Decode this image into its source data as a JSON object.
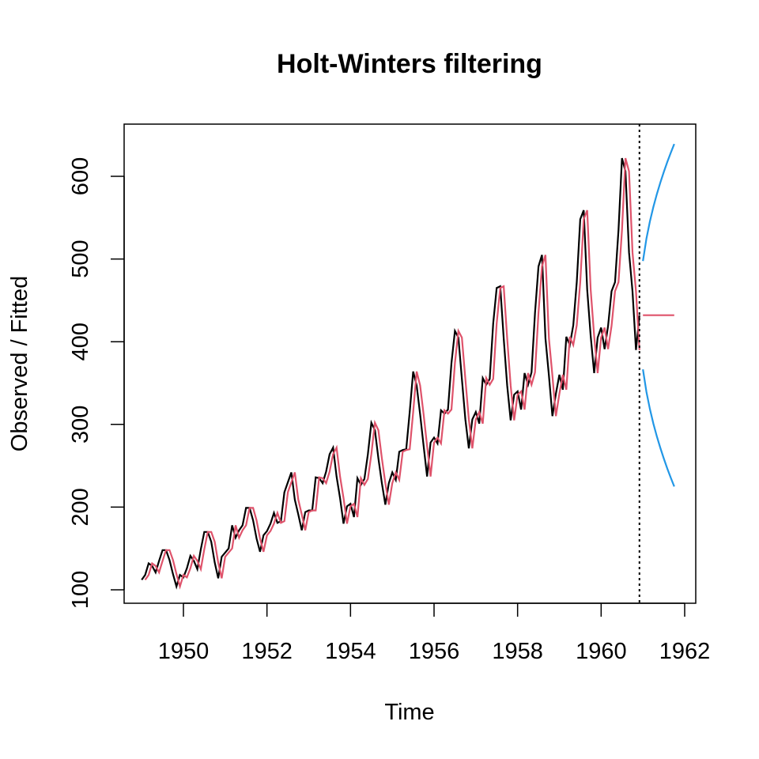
{
  "chart_data": {
    "type": "line",
    "title": "Holt-Winters filtering",
    "xlabel": "Time",
    "ylabel": "Observed / Fitted",
    "xlim": [
      1949,
      1961.75
    ],
    "ylim": [
      104,
      641
    ],
    "x_ticks": [
      1950,
      1952,
      1954,
      1956,
      1958,
      1960,
      1962
    ],
    "y_ticks": [
      100,
      200,
      300,
      400,
      500,
      600
    ],
    "grid": false,
    "legend": "none",
    "start": [
      1949,
      1
    ],
    "frequency": 12,
    "vline_x": 1960.917,
    "series": [
      {
        "role": "observed",
        "color": "#000000",
        "start_index": 0,
        "values": [
          112,
          118,
          132,
          129,
          121,
          135,
          148,
          148,
          136,
          119,
          104,
          118,
          115,
          126,
          141,
          135,
          125,
          149,
          170,
          170,
          158,
          133,
          114,
          140,
          145,
          150,
          178,
          163,
          172,
          178,
          199,
          199,
          184,
          162,
          146,
          166,
          171,
          180,
          193,
          181,
          183,
          218,
          230,
          242,
          209,
          191,
          172,
          194,
          196,
          196,
          236,
          235,
          229,
          243,
          264,
          272,
          237,
          211,
          180,
          201,
          204,
          188,
          235,
          227,
          234,
          264,
          302,
          293,
          259,
          229,
          203,
          229,
          242,
          233,
          267,
          269,
          270,
          315,
          364,
          347,
          312,
          274,
          237,
          278,
          284,
          277,
          317,
          313,
          318,
          374,
          413,
          405,
          355,
          306,
          271,
          306,
          315,
          301,
          356,
          348,
          355,
          422,
          465,
          467,
          404,
          347,
          305,
          336,
          340,
          318,
          362,
          348,
          363,
          435,
          491,
          505,
          404,
          359,
          310,
          337,
          360,
          342,
          406,
          396,
          420,
          472,
          548,
          559,
          463,
          407,
          362,
          405,
          417,
          391,
          419,
          461,
          472,
          535,
          622,
          606,
          508,
          461,
          390,
          432
        ]
      },
      {
        "role": "fitted",
        "color": "#DF536B",
        "start_index": 1,
        "values": [
          112,
          118,
          132,
          129,
          121,
          135,
          148,
          148,
          136,
          119,
          104,
          118,
          115,
          126,
          141,
          135,
          125,
          149,
          170,
          170,
          158,
          133,
          114,
          140,
          145,
          150,
          178,
          163,
          172,
          178,
          199,
          199,
          184,
          162,
          146,
          166,
          171,
          180,
          193,
          181,
          183,
          218,
          230,
          242,
          209,
          191,
          172,
          194,
          196,
          196,
          236,
          235,
          229,
          243,
          264,
          272,
          237,
          211,
          180,
          201,
          204,
          188,
          235,
          227,
          234,
          264,
          302,
          293,
          259,
          229,
          203,
          229,
          242,
          233,
          267,
          269,
          270,
          315,
          364,
          347,
          312,
          274,
          237,
          278,
          284,
          277,
          317,
          313,
          318,
          374,
          413,
          405,
          355,
          306,
          271,
          306,
          315,
          301,
          356,
          348,
          355,
          422,
          465,
          467,
          404,
          347,
          305,
          336,
          340,
          318,
          362,
          348,
          363,
          435,
          491,
          505,
          404,
          359,
          310,
          337,
          360,
          342,
          406,
          396,
          420,
          472,
          548,
          559,
          463,
          407,
          362,
          405,
          417,
          391,
          419,
          461,
          472,
          535,
          622,
          606,
          508,
          461,
          390
        ]
      },
      {
        "role": "forecast",
        "color": "#DF536B",
        "start_index": 144,
        "values": [
          432,
          432,
          432,
          432,
          432,
          432,
          432,
          432,
          432,
          432
        ]
      },
      {
        "role": "upper",
        "color": "#2297E6",
        "start_index": 144,
        "values": [
          497.5,
          524.6,
          545.4,
          563.0,
          578.5,
          592.4,
          605.3,
          617.3,
          628.5,
          639.1
        ]
      },
      {
        "role": "lower",
        "color": "#2297E6",
        "start_index": 144,
        "values": [
          366.5,
          339.4,
          318.6,
          301.0,
          285.5,
          271.6,
          258.7,
          246.7,
          235.5,
          224.9
        ]
      }
    ]
  }
}
